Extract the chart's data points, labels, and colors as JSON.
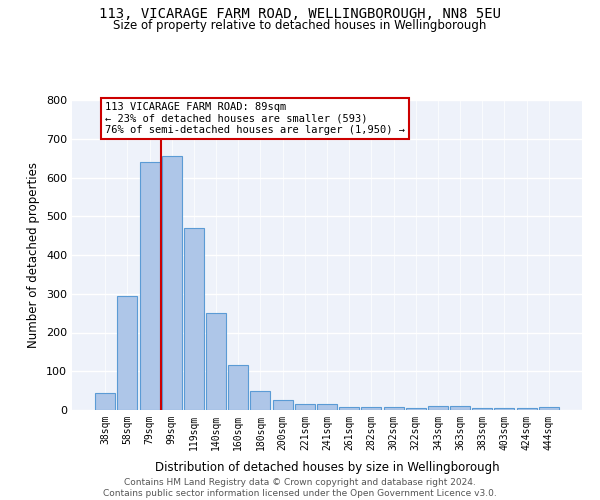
{
  "title_line1": "113, VICARAGE FARM ROAD, WELLINGBOROUGH, NN8 5EU",
  "title_line2": "Size of property relative to detached houses in Wellingborough",
  "xlabel": "Distribution of detached houses by size in Wellingborough",
  "ylabel": "Number of detached properties",
  "categories": [
    "38sqm",
    "58sqm",
    "79sqm",
    "99sqm",
    "119sqm",
    "140sqm",
    "160sqm",
    "180sqm",
    "200sqm",
    "221sqm",
    "241sqm",
    "261sqm",
    "282sqm",
    "302sqm",
    "322sqm",
    "343sqm",
    "363sqm",
    "383sqm",
    "403sqm",
    "424sqm",
    "444sqm"
  ],
  "values": [
    45,
    295,
    640,
    655,
    470,
    250,
    115,
    50,
    27,
    15,
    15,
    8,
    7,
    7,
    5,
    10,
    10,
    5,
    5,
    5,
    8
  ],
  "bar_color": "#aec6e8",
  "bar_edge_color": "#5b9bd5",
  "background_color": "#eef2fa",
  "grid_color": "#ffffff",
  "annotation_box_text": "113 VICARAGE FARM ROAD: 89sqm\n← 23% of detached houses are smaller (593)\n76% of semi-detached houses are larger (1,950) →",
  "annotation_box_color": "#ffffff",
  "annotation_box_edge_color": "#cc0000",
  "vline_x_index": 2.5,
  "vline_color": "#cc0000",
  "ylim": [
    0,
    800
  ],
  "yticks": [
    0,
    100,
    200,
    300,
    400,
    500,
    600,
    700,
    800
  ],
  "footer_line1": "Contains HM Land Registry data © Crown copyright and database right 2024.",
  "footer_line2": "Contains public sector information licensed under the Open Government Licence v3.0."
}
